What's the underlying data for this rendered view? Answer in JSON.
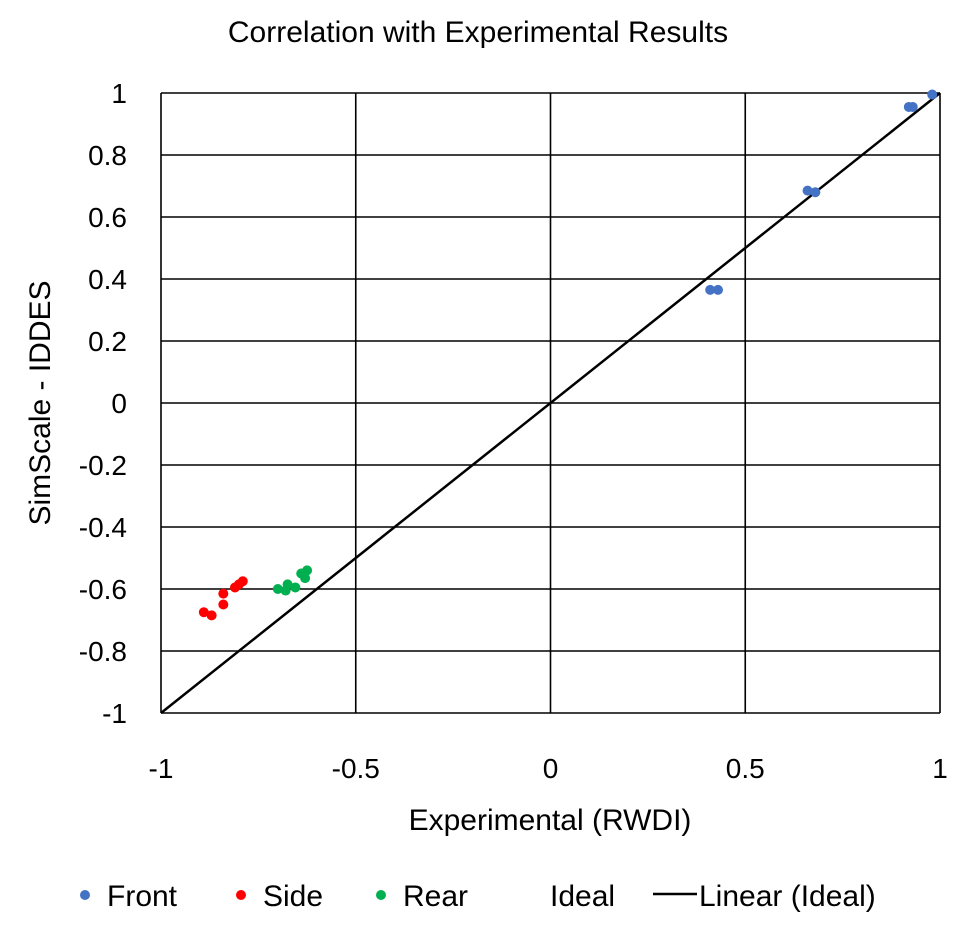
{
  "chart_data": {
    "type": "scatter",
    "title": "Correlation with Experimental Results",
    "xlabel": "Experimental (RWDI)",
    "ylabel": "SimScale - IDDES",
    "xlim": [
      -1,
      1
    ],
    "ylim": [
      -1,
      1
    ],
    "x_ticks": [
      -1,
      -0.5,
      0,
      0.5,
      1
    ],
    "x_tick_labels": [
      "-1",
      "-0.5",
      "0",
      "0.5",
      "1"
    ],
    "y_ticks": [
      1,
      0.8,
      0.6,
      0.4,
      0.2,
      0,
      -0.2,
      -0.4,
      -0.6,
      -0.8,
      -1
    ],
    "y_tick_labels": [
      "1",
      "0.8",
      "0.6",
      "0.4",
      "0.2",
      "0",
      "-0.2",
      "-0.4",
      "-0.6",
      "-0.8",
      "-1"
    ],
    "grid": true,
    "legend_position": "bottom",
    "series": [
      {
        "name": "Front",
        "color": "#4472C4",
        "points": [
          [
            0.41,
            0.365
          ],
          [
            0.43,
            0.365
          ],
          [
            0.66,
            0.685
          ],
          [
            0.68,
            0.68
          ],
          [
            0.92,
            0.955
          ],
          [
            0.93,
            0.955
          ],
          [
            0.98,
            0.995
          ]
        ]
      },
      {
        "name": "Side",
        "color": "#FF0000",
        "points": [
          [
            -0.89,
            -0.675
          ],
          [
            -0.87,
            -0.685
          ],
          [
            -0.84,
            -0.615
          ],
          [
            -0.84,
            -0.65
          ],
          [
            -0.81,
            -0.595
          ],
          [
            -0.8,
            -0.585
          ],
          [
            -0.79,
            -0.575
          ]
        ]
      },
      {
        "name": "Rear",
        "color": "#00B050",
        "points": [
          [
            -0.7,
            -0.6
          ],
          [
            -0.68,
            -0.605
          ],
          [
            -0.675,
            -0.585
          ],
          [
            -0.655,
            -0.595
          ],
          [
            -0.64,
            -0.55
          ],
          [
            -0.63,
            -0.565
          ],
          [
            -0.625,
            -0.54
          ]
        ]
      },
      {
        "name": "Ideal",
        "color": "#000000",
        "points": []
      }
    ],
    "trendline": {
      "name": "Linear (Ideal)",
      "color": "#000000",
      "from": [
        -1,
        -1
      ],
      "to": [
        1,
        1
      ]
    }
  }
}
